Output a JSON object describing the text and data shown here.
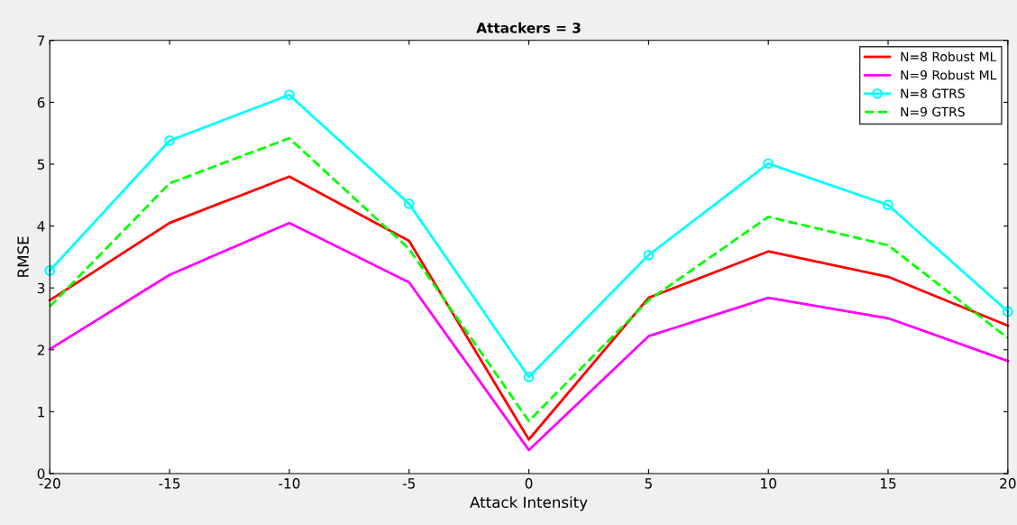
{
  "chart_data": {
    "type": "line",
    "title": "Attackers = 3",
    "xlabel": "Attack Intensity",
    "ylabel": "RMSE",
    "x": [
      -20,
      -15,
      -10,
      -5,
      0,
      5,
      10,
      15,
      20
    ],
    "xlim": [
      -20,
      20
    ],
    "xticks": [
      -20,
      -15,
      -10,
      -5,
      0,
      5,
      10,
      15,
      20
    ],
    "ylim": [
      0,
      7
    ],
    "yticks": [
      0,
      1,
      2,
      3,
      4,
      5,
      6,
      7
    ],
    "grid": false,
    "legend": "top right",
    "series": [
      {
        "name": "N=8 Robust ML",
        "color": "#ff0000",
        "marker": "none",
        "line_style": "solid",
        "values": [
          2.8,
          4.05,
          4.8,
          3.76,
          0.55,
          2.84,
          3.59,
          3.18,
          2.39
        ]
      },
      {
        "name": "N=9 Robust ML",
        "color": "#ff00ff",
        "marker": "none",
        "line_style": "solid",
        "values": [
          2.01,
          3.21,
          4.05,
          3.09,
          0.38,
          2.22,
          2.84,
          2.51,
          1.82
        ]
      },
      {
        "name": "N=8 GTRS",
        "color": "#00ffff",
        "marker": "circle",
        "line_style": "solid",
        "values": [
          3.28,
          5.38,
          6.12,
          4.36,
          1.56,
          3.53,
          5.01,
          4.34,
          2.62
        ]
      },
      {
        "name": "N=9 GTRS",
        "color": "#00ff00",
        "marker": "none",
        "line_style": "dashed",
        "values": [
          2.7,
          4.69,
          5.42,
          3.63,
          0.85,
          2.8,
          4.15,
          3.69,
          2.19
        ]
      }
    ]
  }
}
